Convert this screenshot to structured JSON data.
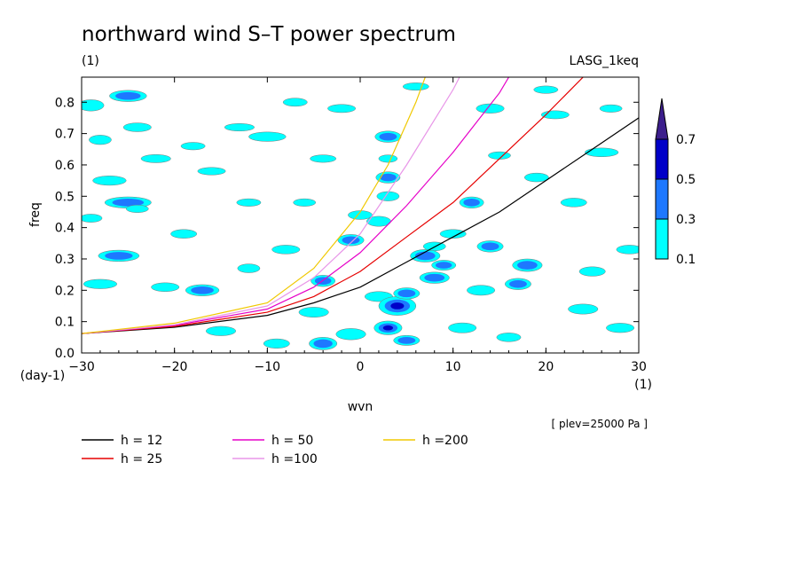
{
  "chart_data": {
    "type": "heatmap",
    "title": "northward wind S–T power spectrum",
    "subtitle_left": "(1)",
    "subtitle_right": "LASG_1keq",
    "xlabel": "wvn",
    "ylabel": "freq",
    "x_unit": "(1)",
    "y_unit": "(day-1)",
    "note": "[ plev=25000 Pa ]",
    "xlim": [
      -30,
      30
    ],
    "ylim": [
      0,
      0.88
    ],
    "x_ticks": [
      -30,
      -20,
      -10,
      0,
      10,
      20,
      30
    ],
    "x_tick_labels": [
      "−30",
      "−20",
      "−10",
      "0",
      "10",
      "20",
      "30"
    ],
    "y_ticks": [
      0.0,
      0.1,
      0.2,
      0.3,
      0.4,
      0.5,
      0.6,
      0.7,
      0.8
    ],
    "y_tick_labels": [
      "0.0",
      "0.1",
      "0.2",
      "0.3",
      "0.4",
      "0.5",
      "0.6",
      "0.7",
      "0.8"
    ],
    "colorbar": {
      "levels": [
        "0.1",
        "0.3",
        "0.5",
        "0.7"
      ],
      "colors": [
        "#00ffff",
        "#1e78ff",
        "#0000c8",
        "#3c1e8c"
      ]
    },
    "dispersion_curves": [
      {
        "label": "h = 12",
        "color": "#000000",
        "points": [
          [
            -30,
            0.062
          ],
          [
            -20,
            0.082
          ],
          [
            -10,
            0.12
          ],
          [
            -5,
            0.16
          ],
          [
            0,
            0.21
          ],
          [
            5,
            0.29
          ],
          [
            10,
            0.37
          ],
          [
            15,
            0.45
          ],
          [
            20,
            0.55
          ],
          [
            25,
            0.65
          ],
          [
            30,
            0.75
          ]
        ]
      },
      {
        "label": "h = 25",
        "color": "#e60000",
        "points": [
          [
            -30,
            0.062
          ],
          [
            -20,
            0.085
          ],
          [
            -10,
            0.13
          ],
          [
            -5,
            0.18
          ],
          [
            0,
            0.26
          ],
          [
            5,
            0.37
          ],
          [
            10,
            0.48
          ],
          [
            15,
            0.62
          ],
          [
            20,
            0.76
          ],
          [
            24,
            0.88
          ]
        ]
      },
      {
        "label": "h = 50",
        "color": "#e600c8",
        "points": [
          [
            -30,
            0.062
          ],
          [
            -20,
            0.088
          ],
          [
            -10,
            0.14
          ],
          [
            -5,
            0.21
          ],
          [
            0,
            0.32
          ],
          [
            5,
            0.47
          ],
          [
            10,
            0.64
          ],
          [
            15,
            0.83
          ],
          [
            16,
            0.88
          ]
        ]
      },
      {
        "label": "h =100",
        "color": "#e896e8",
        "points": [
          [
            -30,
            0.062
          ],
          [
            -20,
            0.09
          ],
          [
            -10,
            0.15
          ],
          [
            -5,
            0.24
          ],
          [
            0,
            0.38
          ],
          [
            5,
            0.6
          ],
          [
            10,
            0.84
          ],
          [
            10.7,
            0.88
          ]
        ]
      },
      {
        "label": "h =200",
        "color": "#f0c800",
        "points": [
          [
            -30,
            0.062
          ],
          [
            -20,
            0.095
          ],
          [
            -10,
            0.16
          ],
          [
            -5,
            0.27
          ],
          [
            0,
            0.45
          ],
          [
            3,
            0.6
          ],
          [
            6,
            0.8
          ],
          [
            7,
            0.88
          ]
        ]
      }
    ],
    "blobs": [
      [
        -29,
        0.79,
        1.4,
        0.018,
        1
      ],
      [
        -28,
        0.68,
        1.2,
        0.015,
        1
      ],
      [
        -25,
        0.82,
        2.0,
        0.018,
        2
      ],
      [
        -24,
        0.72,
        1.5,
        0.014,
        1
      ],
      [
        -27,
        0.55,
        1.8,
        0.015,
        1
      ],
      [
        -25,
        0.48,
        2.5,
        0.018,
        2
      ],
      [
        -24,
        0.46,
        1.2,
        0.012,
        1
      ],
      [
        -26,
        0.31,
        2.2,
        0.018,
        2
      ],
      [
        -22,
        0.62,
        1.6,
        0.013,
        1
      ],
      [
        -28,
        0.22,
        1.8,
        0.015,
        1
      ],
      [
        -21,
        0.21,
        1.5,
        0.014,
        1
      ],
      [
        -17,
        0.2,
        1.8,
        0.018,
        2
      ],
      [
        -19,
        0.38,
        1.4,
        0.014,
        1
      ],
      [
        -16,
        0.58,
        1.5,
        0.012,
        1
      ],
      [
        -13,
        0.72,
        1.6,
        0.012,
        1
      ],
      [
        -10,
        0.69,
        2.0,
        0.015,
        1
      ],
      [
        -12,
        0.48,
        1.3,
        0.012,
        1
      ],
      [
        -8,
        0.33,
        1.5,
        0.014,
        1
      ],
      [
        -6,
        0.48,
        1.2,
        0.012,
        1
      ],
      [
        -4,
        0.62,
        1.4,
        0.012,
        1
      ],
      [
        -4,
        0.23,
        1.3,
        0.018,
        2
      ],
      [
        -5,
        0.13,
        1.6,
        0.016,
        1
      ],
      [
        -4,
        0.03,
        1.5,
        0.02,
        2
      ],
      [
        -1,
        0.06,
        1.6,
        0.018,
        1
      ],
      [
        -2,
        0.78,
        1.5,
        0.013,
        1
      ],
      [
        0,
        0.44,
        1.3,
        0.014,
        1
      ],
      [
        -1,
        0.36,
        1.4,
        0.018,
        2
      ],
      [
        2,
        0.18,
        1.5,
        0.016,
        1
      ],
      [
        3,
        0.69,
        1.4,
        0.018,
        2
      ],
      [
        3,
        0.62,
        1.0,
        0.012,
        1
      ],
      [
        3,
        0.56,
        1.3,
        0.018,
        2
      ],
      [
        3,
        0.5,
        1.2,
        0.015,
        1
      ],
      [
        2,
        0.42,
        1.3,
        0.016,
        1
      ],
      [
        4,
        0.15,
        2.0,
        0.03,
        3
      ],
      [
        5,
        0.19,
        1.4,
        0.018,
        2
      ],
      [
        3,
        0.08,
        1.5,
        0.022,
        3
      ],
      [
        5,
        0.04,
        1.4,
        0.016,
        2
      ],
      [
        7,
        0.31,
        1.6,
        0.02,
        2
      ],
      [
        8,
        0.24,
        1.6,
        0.018,
        2
      ],
      [
        9,
        0.28,
        1.3,
        0.016,
        2
      ],
      [
        8,
        0.34,
        1.2,
        0.014,
        1
      ],
      [
        10,
        0.38,
        1.4,
        0.014,
        1
      ],
      [
        12,
        0.48,
        1.3,
        0.018,
        2
      ],
      [
        14,
        0.34,
        1.4,
        0.018,
        2
      ],
      [
        13,
        0.2,
        1.5,
        0.016,
        1
      ],
      [
        15,
        0.63,
        1.2,
        0.012,
        1
      ],
      [
        14,
        0.78,
        1.5,
        0.015,
        1
      ],
      [
        17,
        0.22,
        1.4,
        0.018,
        2
      ],
      [
        18,
        0.28,
        1.6,
        0.02,
        2
      ],
      [
        19,
        0.56,
        1.3,
        0.014,
        1
      ],
      [
        21,
        0.76,
        1.5,
        0.013,
        1
      ],
      [
        23,
        0.48,
        1.4,
        0.014,
        1
      ],
      [
        24,
        0.14,
        1.6,
        0.016,
        1
      ],
      [
        26,
        0.64,
        1.8,
        0.014,
        1
      ],
      [
        28,
        0.08,
        1.5,
        0.015,
        1
      ],
      [
        29,
        0.33,
        1.4,
        0.014,
        1
      ],
      [
        -15,
        0.07,
        1.6,
        0.015,
        1
      ],
      [
        -9,
        0.03,
        1.4,
        0.015,
        1
      ],
      [
        11,
        0.08,
        1.5,
        0.016,
        1
      ],
      [
        16,
        0.05,
        1.3,
        0.014,
        1
      ],
      [
        -29,
        0.43,
        1.2,
        0.013,
        1
      ],
      [
        -18,
        0.66,
        1.3,
        0.012,
        1
      ],
      [
        -7,
        0.8,
        1.3,
        0.013,
        1
      ],
      [
        6,
        0.85,
        1.4,
        0.012,
        1
      ],
      [
        20,
        0.84,
        1.3,
        0.012,
        1
      ],
      [
        27,
        0.78,
        1.2,
        0.012,
        1
      ],
      [
        -12,
        0.27,
        1.2,
        0.014,
        1
      ],
      [
        25,
        0.26,
        1.4,
        0.015,
        1
      ]
    ]
  },
  "legend": {
    "items": [
      {
        "label": "h = 12",
        "color": "#000000"
      },
      {
        "label": "h = 25",
        "color": "#e60000"
      },
      {
        "label": "h = 50",
        "color": "#e600c8"
      },
      {
        "label": "h =100",
        "color": "#e896e8"
      },
      {
        "label": "h =200",
        "color": "#f0c800"
      }
    ]
  }
}
